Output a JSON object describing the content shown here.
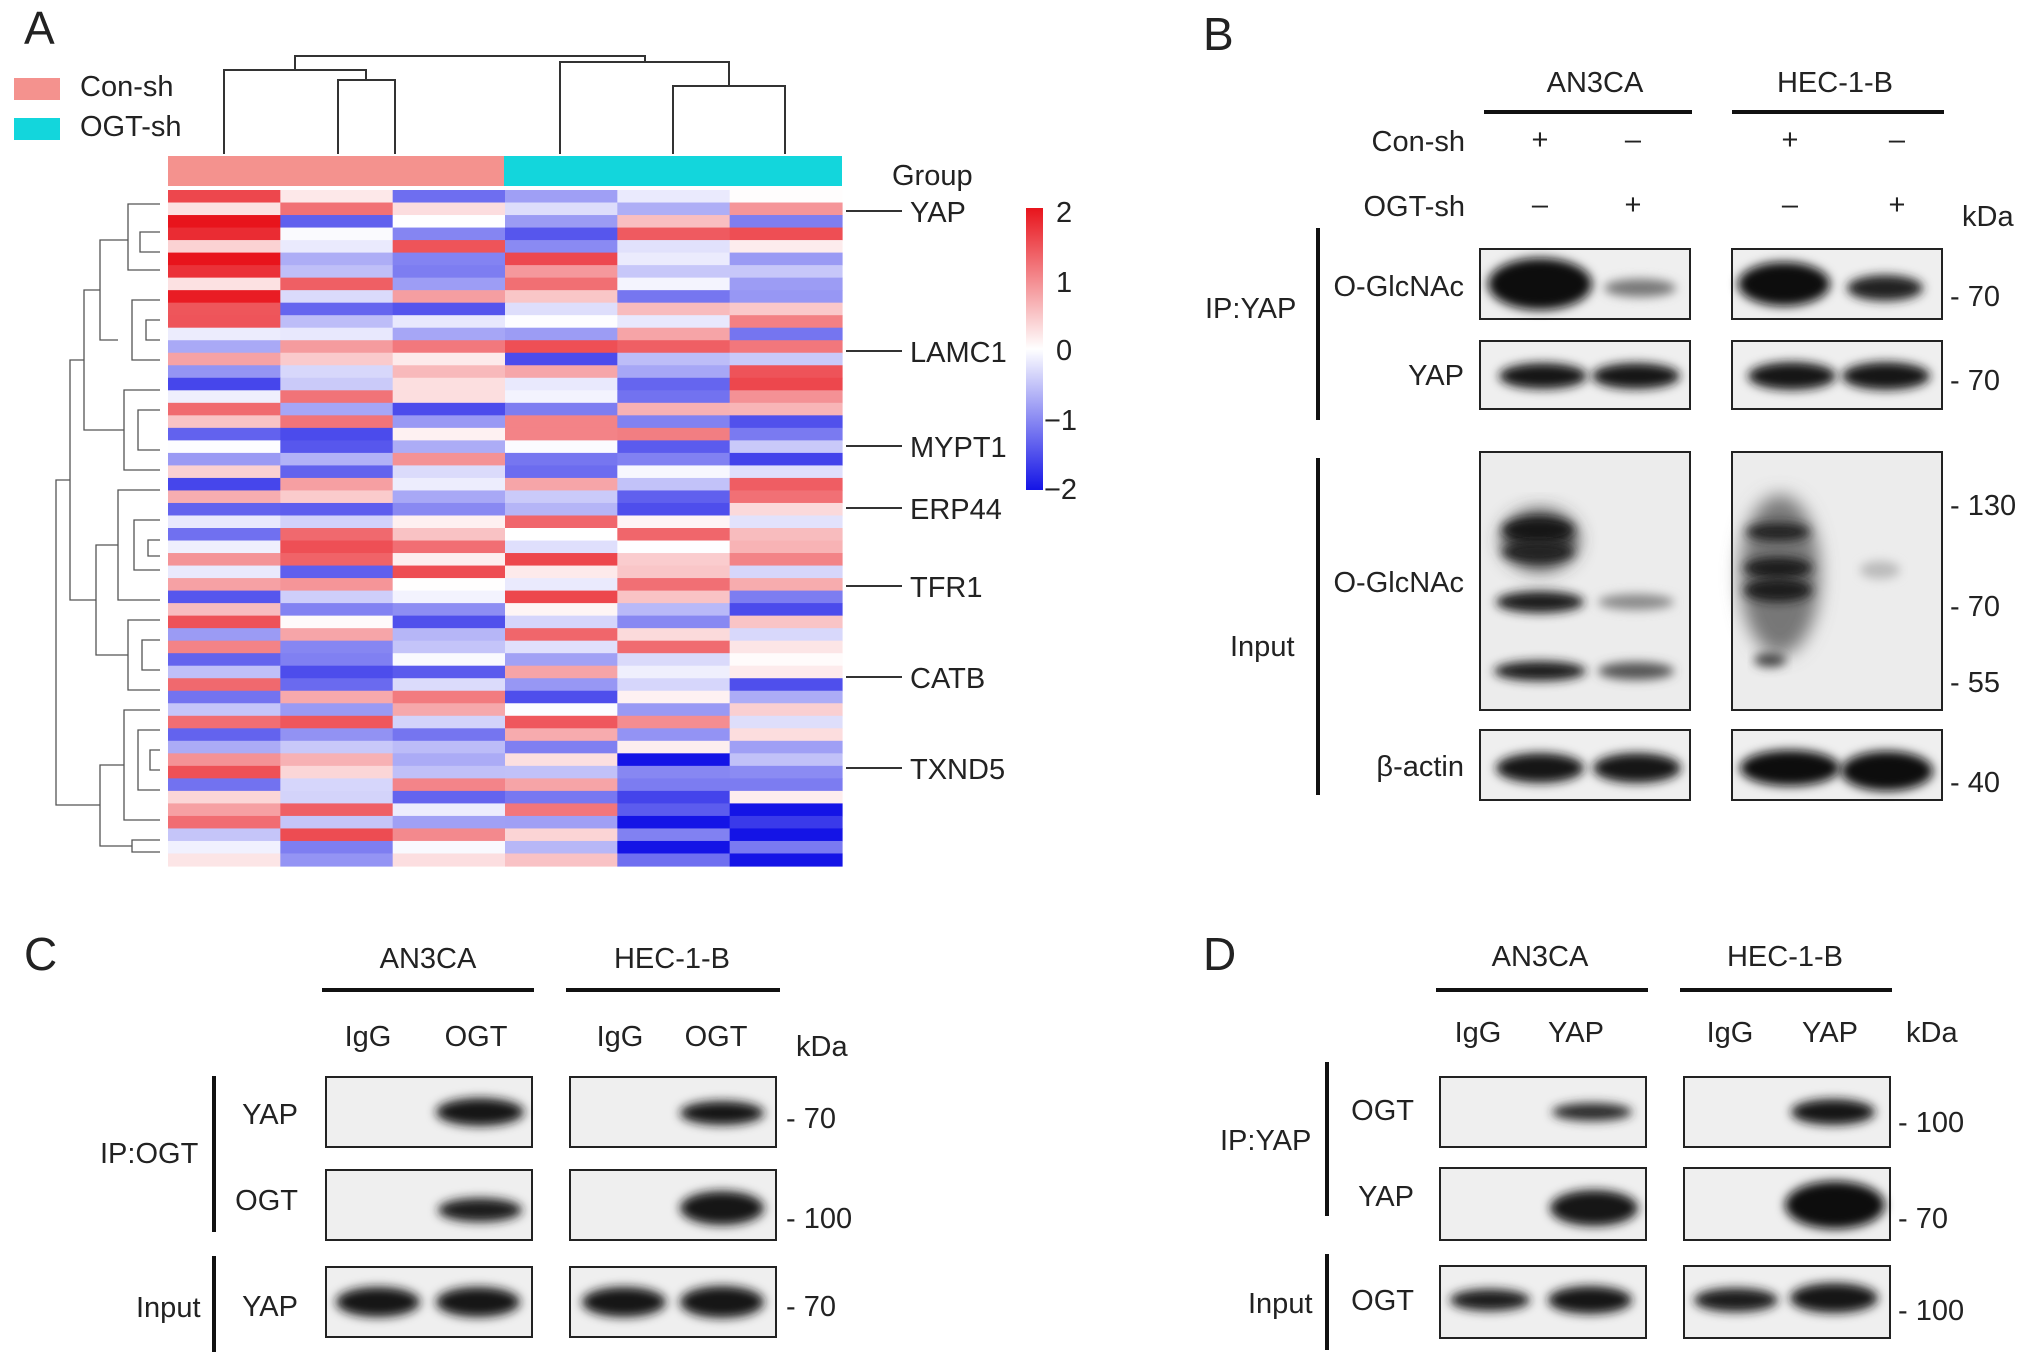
{
  "panels": {
    "a": {
      "letter": "A",
      "legend": [
        {
          "label": "Con-sh",
          "color": "#f4928e"
        },
        {
          "label": "OGT-sh",
          "color": "#13d6dc"
        }
      ],
      "group_label": "Group",
      "genes": [
        "YAP",
        "LAMC1",
        "MYPT1",
        "ERP44",
        "TFR1",
        "CATB",
        "TXND5"
      ],
      "colorbar": {
        "ticks": [
          "2",
          "1",
          "0",
          "−1",
          "−2"
        ],
        "high": "#e8141c",
        "mid": "#ffffff",
        "low": "#1414e6"
      }
    },
    "b": {
      "letter": "B",
      "cell_lines": [
        "AN3CA",
        "HEC-1-B"
      ],
      "conditions": [
        {
          "label": "Con-sh",
          "signs": [
            "+",
            "–",
            "+",
            "–"
          ]
        },
        {
          "label": "OGT-sh",
          "signs": [
            "–",
            "+",
            "–",
            "+"
          ]
        }
      ],
      "kda_label": "kDa",
      "ip_label": "IP:YAP",
      "input_label": "Input",
      "rows": [
        "O-GlcNAc",
        "YAP",
        "O-GlcNAc",
        "β-actin"
      ],
      "markers": [
        "- 70",
        "- 70",
        "- 130",
        "- 70",
        "- 55",
        "- 40"
      ]
    },
    "c": {
      "letter": "C",
      "cell_lines": [
        "AN3CA",
        "HEC-1-B"
      ],
      "lanes": [
        "IgG",
        "OGT",
        "IgG",
        "OGT"
      ],
      "kda_label": "kDa",
      "ip_label": "IP:OGT",
      "input_label": "Input",
      "rows": [
        "YAP",
        "OGT",
        "YAP"
      ],
      "markers": [
        "- 70",
        "- 100",
        "- 70"
      ]
    },
    "d": {
      "letter": "D",
      "cell_lines": [
        "AN3CA",
        "HEC-1-B"
      ],
      "lanes": [
        "IgG",
        "YAP",
        "IgG",
        "YAP"
      ],
      "kda_label": "kDa",
      "ip_label": "IP:YAP",
      "input_label": "Input",
      "rows": [
        "OGT",
        "YAP",
        "OGT"
      ],
      "markers": [
        "- 100",
        "- 70",
        "- 100"
      ]
    }
  }
}
